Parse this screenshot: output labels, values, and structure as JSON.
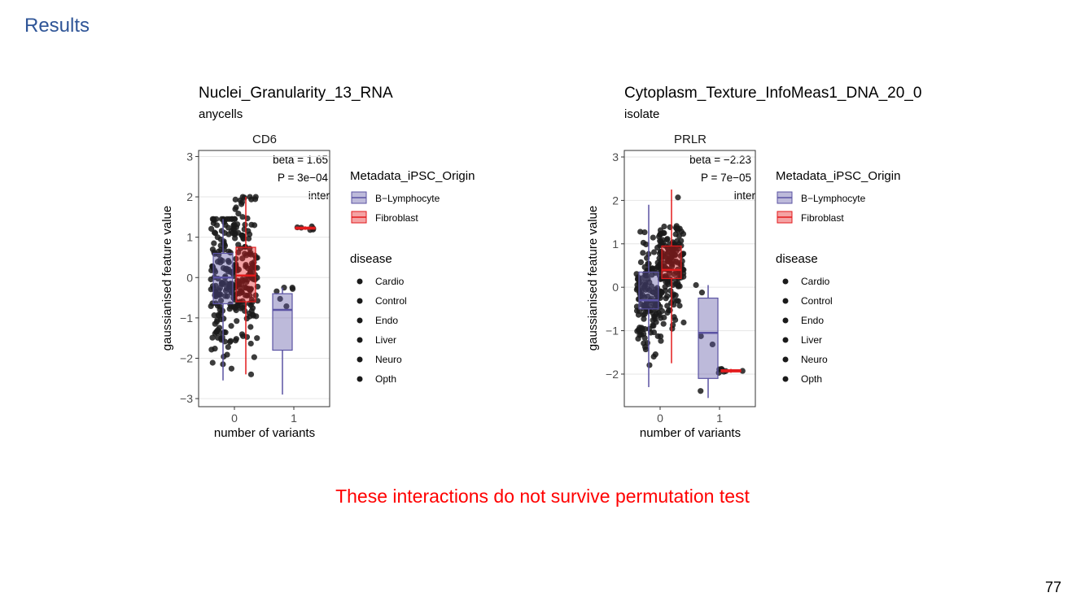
{
  "slide": {
    "title": "Results",
    "footer_note": "These interactions do not survive permutation test",
    "page_number": "77"
  },
  "colors": {
    "title": "#2f5597",
    "footer_note": "#ff0000",
    "b_lymphocyte": "#5b53a3",
    "fibroblast": "#e31a1c",
    "points": "#1a1a1a",
    "points_light": "#808080"
  },
  "chart_data": [
    {
      "type": "box",
      "title": "Nuclei_Granularity_13_RNA",
      "subtitle": "anycells",
      "facet_label": "CD6",
      "xlabel": "number of variants",
      "ylabel": "gaussianised feature value",
      "ylim": [
        -3.2,
        3.15
      ],
      "yticks": [
        3,
        2,
        1,
        0,
        -1,
        -2,
        -3
      ],
      "xticks": [
        0,
        1
      ],
      "annotations": [
        "beta = 1.65",
        "P = 3e−04",
        "inter"
      ],
      "legend_placement": "right",
      "legend_color_title": "Metadata_iPSC_Origin",
      "legend_color_items": [
        "B−Lymphocyte",
        "Fibroblast"
      ],
      "legend_shape_title": "disease",
      "legend_shape_items": [
        "Cardio",
        "Control",
        "Endo",
        "Liver",
        "Neuro",
        "Opth"
      ],
      "series": [
        {
          "name": "B−Lymphocyte",
          "boxes": [
            {
              "x": 0,
              "q1": -0.65,
              "median": 0.0,
              "q3": 0.6,
              "low": -2.55,
              "high": 1.45
            },
            {
              "x": 1,
              "q1": -1.8,
              "median": -0.8,
              "q3": -0.4,
              "low": -2.9,
              "high": -0.25
            }
          ]
        },
        {
          "name": "Fibroblast",
          "boxes": [
            {
              "x": 0,
              "q1": -0.6,
              "median": 0.05,
              "q3": 0.75,
              "low": -2.4,
              "high": 2.0
            },
            {
              "x": 1,
              "q1": 1.2,
              "median": 1.22,
              "q3": 1.25,
              "low": 1.18,
              "high": 1.27
            }
          ]
        }
      ]
    },
    {
      "type": "box",
      "title": "Cytoplasm_Texture_InfoMeas1_DNA_20_0",
      "subtitle": "isolate",
      "facet_label": "PRLR",
      "xlabel": "number of variants",
      "ylabel": "gaussianised feature value",
      "ylim": [
        -2.75,
        3.15
      ],
      "yticks": [
        3,
        2,
        1,
        0,
        -1,
        -2
      ],
      "xticks": [
        0,
        1
      ],
      "annotations": [
        "beta = −2.23",
        "P = 7e−05",
        "inter"
      ],
      "legend_placement": "right",
      "legend_color_title": "Metadata_iPSC_Origin",
      "legend_color_items": [
        "B−Lymphocyte",
        "Fibroblast"
      ],
      "legend_shape_title": "disease",
      "legend_shape_items": [
        "Cardio",
        "Control",
        "Endo",
        "Liver",
        "Neuro",
        "Opth"
      ],
      "series": [
        {
          "name": "B−Lymphocyte",
          "boxes": [
            {
              "x": 0,
              "q1": -0.5,
              "median": -0.3,
              "q3": 0.35,
              "low": -2.3,
              "high": 1.9
            },
            {
              "x": 1,
              "q1": -2.1,
              "median": -1.05,
              "q3": -0.25,
              "low": -2.55,
              "high": 0.05
            }
          ]
        },
        {
          "name": "Fibroblast",
          "boxes": [
            {
              "x": 0,
              "q1": 0.2,
              "median": 0.4,
              "q3": 0.95,
              "low": -1.75,
              "high": 2.25
            },
            {
              "x": 1,
              "q1": -1.95,
              "median": -1.92,
              "q3": -1.9,
              "low": -1.97,
              "high": -1.88
            }
          ]
        }
      ]
    }
  ]
}
